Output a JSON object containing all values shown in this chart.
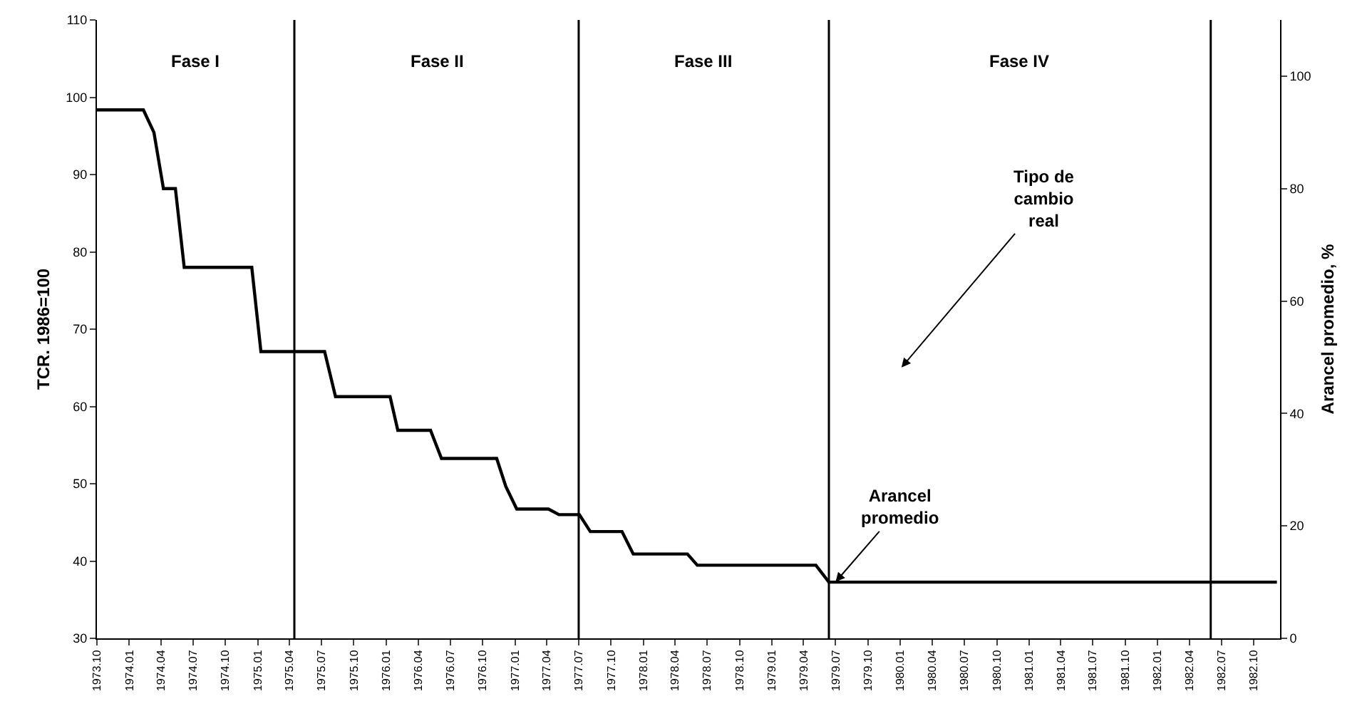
{
  "chart_data": {
    "type": "line",
    "ylabel": "TCR. 1986=100",
    "y2label": "Arancel promedio, %",
    "x": [
      "1973-10-01",
      "1974-02-10",
      "1974-03-12",
      "1974-04-08",
      "1974-05-12",
      "1974-06-06",
      "1974-12-15",
      "1975-01-10",
      "1975-07-10",
      "1975-08-10",
      "1976-01-12",
      "1976-02-03",
      "1976-05-06",
      "1976-06-06",
      "1976-11-10",
      "1976-12-06",
      "1977-01-06",
      "1977-04-06",
      "1977-05-06",
      "1977-07-03",
      "1977-08-03",
      "1977-11-01",
      "1977-12-03",
      "1978-05-06",
      "1978-06-03",
      "1979-05-06",
      "1979-06-12",
      "1982-12-06"
    ],
    "series": [
      {
        "color": "#000000",
        "axis": "y2",
        "values": [
          94,
          94,
          90,
          80,
          80,
          66,
          66,
          51,
          51,
          43,
          43,
          37,
          37,
          32,
          32,
          27,
          23,
          23,
          22,
          22,
          19,
          19,
          15,
          15,
          13,
          13,
          10,
          10
        ]
      }
    ],
    "xlim": [
      "1973-10-01",
      "1982-12-15"
    ],
    "xticks": [
      {
        "value": "1973-10-01",
        "label": "1973.10"
      },
      {
        "value": "1974-01-01",
        "label": "1974.01"
      },
      {
        "value": "1974-04-01",
        "label": "1974.04"
      },
      {
        "value": "1974-07-01",
        "label": "1974.07"
      },
      {
        "value": "1974-10-01",
        "label": "1974.10"
      },
      {
        "value": "1975-01-01",
        "label": "1975.01"
      },
      {
        "value": "1975-04-01",
        "label": "1975.04"
      },
      {
        "value": "1975-07-01",
        "label": "1975.07"
      },
      {
        "value": "1975-10-01",
        "label": "1975.10"
      },
      {
        "value": "1976-01-01",
        "label": "1976.01"
      },
      {
        "value": "1976-04-01",
        "label": "1976.04"
      },
      {
        "value": "1976-07-01",
        "label": "1976.07"
      },
      {
        "value": "1976-10-01",
        "label": "1976.10"
      },
      {
        "value": "1977-01-01",
        "label": "1977.01"
      },
      {
        "value": "1977-04-01",
        "label": "1977.04"
      },
      {
        "value": "1977-07-01",
        "label": "1977.07"
      },
      {
        "value": "1977-10-01",
        "label": "1977.10"
      },
      {
        "value": "1978-01-01",
        "label": "1978.01"
      },
      {
        "value": "1978-04-01",
        "label": "1978.04"
      },
      {
        "value": "1978-07-01",
        "label": "1978.07"
      },
      {
        "value": "1978-10-01",
        "label": "1978.10"
      },
      {
        "value": "1979-01-01",
        "label": "1979.01"
      },
      {
        "value": "1979-04-01",
        "label": "1979.04"
      },
      {
        "value": "1979-07-01",
        "label": "1979.07"
      },
      {
        "value": "1979-10-01",
        "label": "1979.10"
      },
      {
        "value": "1980-01-01",
        "label": "1980.01"
      },
      {
        "value": "1980-04-01",
        "label": "1980.04"
      },
      {
        "value": "1980-07-01",
        "label": "1980.07"
      },
      {
        "value": "1980-10-01",
        "label": "1980.10"
      },
      {
        "value": "1981-01-01",
        "label": "1981.01"
      },
      {
        "value": "1981-04-01",
        "label": "1981.04"
      },
      {
        "value": "1981-07-01",
        "label": "1981.07"
      },
      {
        "value": "1981-10-01",
        "label": "1981.10"
      },
      {
        "value": "1982-01-01",
        "label": "1982.01"
      },
      {
        "value": "1982-04-01",
        "label": "1982.04"
      },
      {
        "value": "1982-07-01",
        "label": "1982.07"
      },
      {
        "value": "1982-10-01",
        "label": "1982.10"
      }
    ],
    "ylim": [
      30,
      110
    ],
    "yticks": [
      30,
      40,
      50,
      60,
      70,
      80,
      90,
      100,
      110
    ],
    "y2lim": [
      0,
      110
    ],
    "y2ticks": [
      0,
      20,
      40,
      60,
      80,
      100
    ],
    "ref_lines": [
      {
        "axis": "x",
        "value": "1975-04-15",
        "color": "#000000"
      },
      {
        "axis": "x",
        "value": "1977-07-01",
        "color": "#000000"
      },
      {
        "axis": "x",
        "value": "1979-06-12",
        "color": "#000000"
      },
      {
        "axis": "x",
        "value": "1982-06-01",
        "color": "#000000"
      }
    ],
    "annotations": [
      "Fase I",
      "Fase II",
      "Fase III",
      "Fase IV",
      "Tipo de cambio real",
      {
        "text": "Arancel promedio",
        "x": "1979-07-01",
        "y": 37.3
      }
    ],
    "grid": false,
    "marker": "none",
    "line_style": "solid"
  }
}
